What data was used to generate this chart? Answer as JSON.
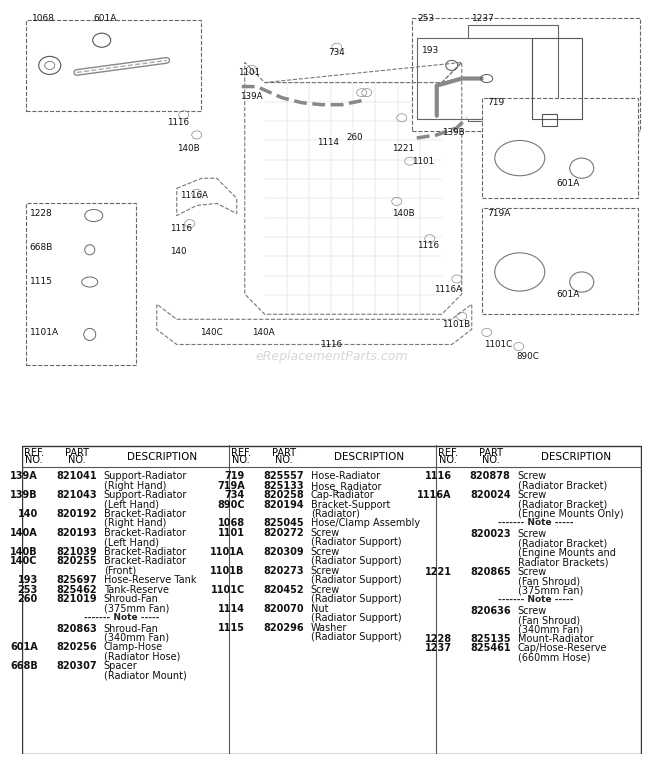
{
  "bg_color": "#ffffff",
  "watermark": "eReplacementParts.com",
  "col1_data": [
    [
      "139A",
      "821041",
      "Support-Radiator",
      "(Right Hand)",
      false
    ],
    [
      "139B",
      "821043",
      "Support-Radiator",
      "(Left Hand)",
      false
    ],
    [
      "140",
      "820192",
      "Bracket-Radiator",
      "(Right Hand)",
      false
    ],
    [
      "140A",
      "820193",
      "Bracket-Radiator",
      "(Left Hand)",
      false
    ],
    [
      "140B",
      "821039",
      "Bracket-Radiator",
      "",
      false
    ],
    [
      "140C",
      "820255",
      "Bracket-Radiator",
      "(Front)",
      false
    ],
    [
      "193",
      "825697",
      "Hose-Reserve Tank",
      "",
      false
    ],
    [
      "253",
      "825462",
      "Tank-Reserve",
      "",
      false
    ],
    [
      "260",
      "821019",
      "Shroud-Fan",
      "(375mm Fan)",
      false
    ],
    [
      "",
      "",
      "------- Note -----",
      "",
      true
    ],
    [
      "",
      "820863",
      "Shroud-Fan",
      "(340mm Fan)",
      false
    ],
    [
      "601A",
      "820256",
      "Clamp-Hose",
      "(Radiator Hose)",
      false
    ],
    [
      "668B",
      "820307",
      "Spacer",
      "(Radiator Mount)",
      false
    ]
  ],
  "col2_data": [
    [
      "719",
      "825557",
      "Hose-Radiator",
      "",
      false
    ],
    [
      "719A",
      "825133",
      "Hose_Radiator",
      "",
      false
    ],
    [
      "734",
      "820258",
      "Cap-Radiator",
      "",
      false
    ],
    [
      "890C",
      "820194",
      "Bracket-Support",
      "(Radiator)",
      false
    ],
    [
      "1068",
      "825045",
      "Hose/Clamp Assembly",
      "",
      false
    ],
    [
      "1101",
      "820272",
      "Screw",
      "(Radiator Support)",
      false
    ],
    [
      "1101A",
      "820309",
      "Screw",
      "(Radiator Support)",
      false
    ],
    [
      "1101B",
      "820273",
      "Screw",
      "(Radiator Support)",
      false
    ],
    [
      "1101C",
      "820452",
      "Screw",
      "(Radiator Support)",
      false
    ],
    [
      "1114",
      "820070",
      "Nut",
      "(Radiator Support)",
      false
    ],
    [
      "1115",
      "820296",
      "Washer",
      "(Radiator Support)",
      false
    ]
  ],
  "col3_data": [
    [
      "1116",
      "820878",
      "Screw",
      "(Radiator Bracket)",
      false
    ],
    [
      "1116A",
      "820024",
      "Screw",
      "(Radiator Bracket)",
      false
    ],
    [
      "",
      "",
      "(Engine Mounts Only)",
      "",
      false
    ],
    [
      "",
      "",
      "------- Note -----",
      "",
      true
    ],
    [
      "",
      "820023",
      "Screw",
      "",
      false
    ],
    [
      "",
      "",
      "(Radiator Bracket)",
      "",
      false
    ],
    [
      "",
      "",
      "(Engine Mounts and",
      "",
      false
    ],
    [
      "",
      "",
      "Radiator Brackets)",
      "",
      false
    ],
    [
      "1221",
      "820865",
      "Screw",
      "(Fan Shroud)",
      false
    ],
    [
      "",
      "",
      "(375mm Fan)",
      "",
      false
    ],
    [
      "",
      "",
      "------- Note -----",
      "",
      true
    ],
    [
      "",
      "820636",
      "Screw",
      "(Fan Shroud)",
      false
    ],
    [
      "",
      "",
      "(340mm Fan)",
      "",
      false
    ],
    [
      "1228",
      "825135",
      "Mount-Radiator",
      "",
      false
    ],
    [
      "1237",
      "825461",
      "Cap/Hose-Reserve",
      "(660mm Hose)",
      false
    ]
  ]
}
